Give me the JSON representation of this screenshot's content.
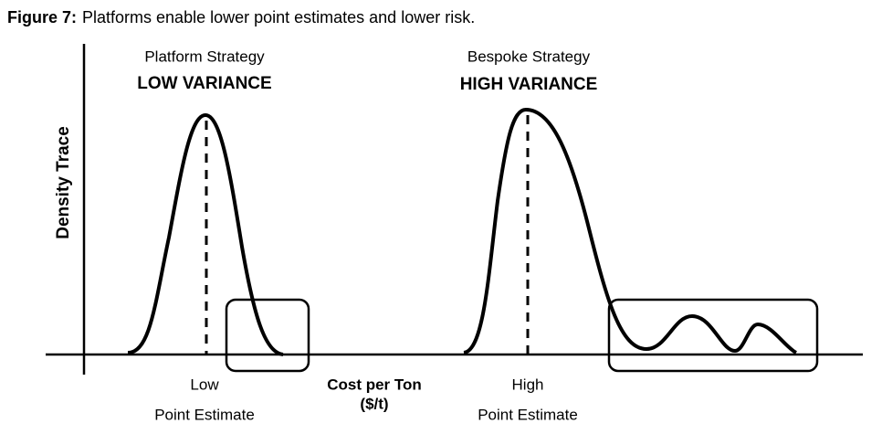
{
  "figure": {
    "label": "Figure 7:",
    "caption": "Platforms enable lower point estimates and lower risk."
  },
  "y_axis_label": "Density Trace",
  "x_axis_label": {
    "line1": "Cost per Ton",
    "line2": "($/t)"
  },
  "panels": [
    {
      "strategy": "Platform Strategy",
      "variance": "LOW VARIANCE",
      "estimate_level": "Low",
      "estimate_label": "Point Estimate"
    },
    {
      "strategy": "Bespoke Strategy",
      "variance": "HIGH VARIANCE",
      "estimate_level": "High",
      "estimate_label": "Point Estimate"
    }
  ]
}
